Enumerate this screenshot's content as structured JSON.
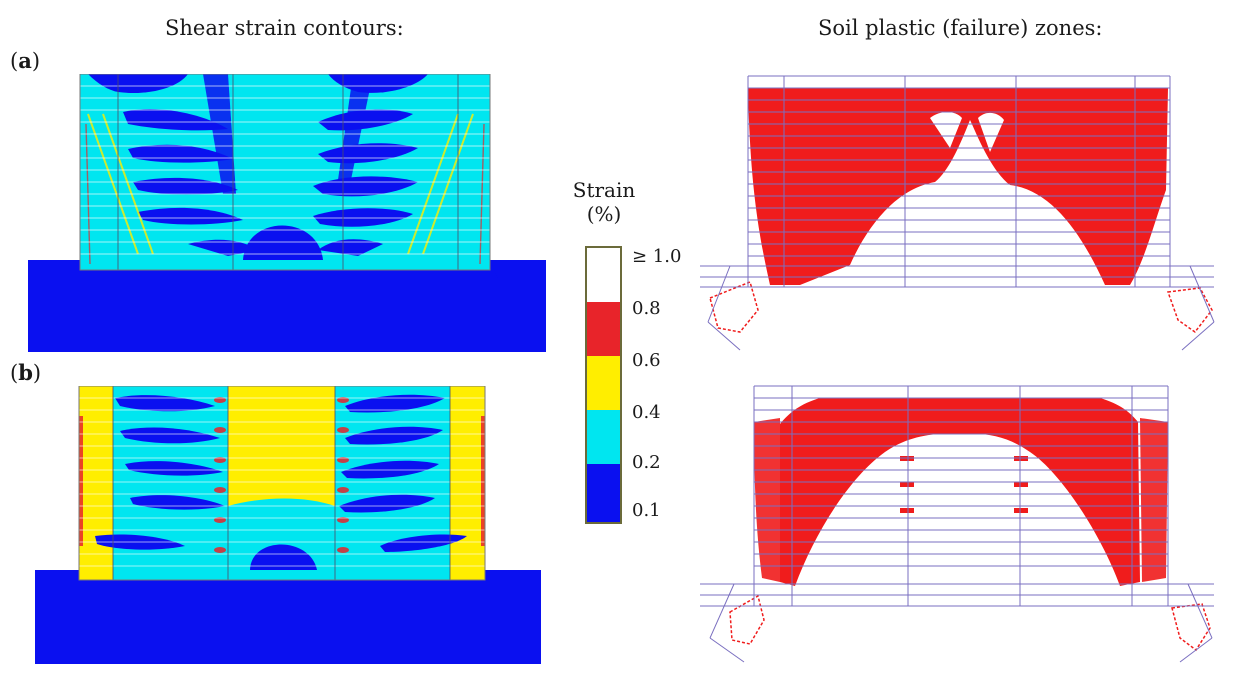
{
  "headings": {
    "left": "Shear strain contours:",
    "right": "Soil plastic (failure) zones:"
  },
  "panels": [
    {
      "open": "(",
      "letter": "a",
      "close": ")"
    },
    {
      "open": "(",
      "letter": "b",
      "close": ")"
    }
  ],
  "legend": {
    "title_line1": "Strain",
    "title_line2": "(%)",
    "ticks": [
      "≥ 1.0",
      "0.8",
      "0.6",
      "0.4",
      "0.2",
      "0.1"
    ],
    "colors": [
      "#ffffff",
      "#e8242a",
      "#ffee00",
      "#00e6f0",
      "#0a10f0"
    ]
  }
}
